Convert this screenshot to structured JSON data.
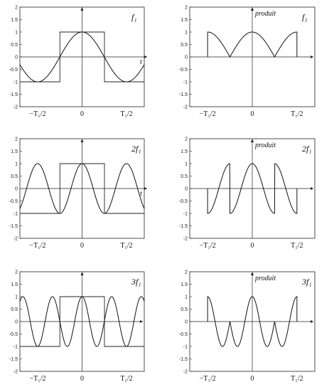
{
  "figure": {
    "tick_labels_y": [
      "2",
      "1.5",
      "1",
      "0.5",
      "0",
      "-0.5",
      "-1",
      "-1.5",
      "-2"
    ],
    "bottom_labels": {
      "left": "−T₁/2",
      "center": "0",
      "right": "T₁/2"
    },
    "t_label": "t",
    "product_label": "produit"
  },
  "chart_data": [
    {
      "id": "left-1",
      "type": "line",
      "freq_label": "f₁",
      "harmonic": 1,
      "show_t": true,
      "show_produit": false,
      "ylim": [
        -2,
        2
      ],
      "xlim": [
        -0.7,
        0.7
      ],
      "yticks": [
        2,
        1.5,
        1,
        0.5,
        0,
        -0.5,
        -1,
        -1.5,
        -2
      ],
      "series": [
        {
          "kind": "square",
          "period": 1,
          "amplitude": 1
        },
        {
          "kind": "cosine",
          "period": 1,
          "amplitude": 1
        }
      ]
    },
    {
      "id": "right-1",
      "type": "line",
      "freq_label": "f₁",
      "harmonic": 1,
      "show_t": false,
      "show_produit": true,
      "ylim": [
        -2,
        2
      ],
      "xlim": [
        -0.7,
        0.7
      ],
      "yticks": [
        2,
        1.5,
        1,
        0.5,
        0,
        -0.5,
        -1,
        -1.5,
        -2
      ],
      "series": [
        {
          "kind": "product",
          "window": [
            -0.5,
            0.5
          ]
        }
      ]
    },
    {
      "id": "left-2",
      "type": "line",
      "freq_label": "2f₁",
      "harmonic": 2,
      "show_t": true,
      "show_produit": false,
      "ylim": [
        -2,
        2
      ],
      "xlim": [
        -0.7,
        0.7
      ],
      "yticks": [
        2,
        1.5,
        1,
        0.5,
        0,
        -0.5,
        -1,
        -1.5,
        -2
      ],
      "series": [
        {
          "kind": "square",
          "period": 1,
          "amplitude": 1
        },
        {
          "kind": "cosine",
          "period": 0.5,
          "amplitude": 1
        }
      ]
    },
    {
      "id": "right-2",
      "type": "line",
      "freq_label": "2f₁",
      "harmonic": 2,
      "show_t": false,
      "show_produit": true,
      "ylim": [
        -2,
        2
      ],
      "xlim": [
        -0.7,
        0.7
      ],
      "yticks": [
        2,
        1.5,
        1,
        0.5,
        0,
        -0.5,
        -1,
        -1.5,
        -2
      ],
      "series": [
        {
          "kind": "product",
          "window": [
            -0.5,
            0.5
          ]
        }
      ]
    },
    {
      "id": "left-3",
      "type": "line",
      "freq_label": "3f₁",
      "harmonic": 3,
      "show_t": false,
      "show_produit": false,
      "ylim": [
        -2,
        2
      ],
      "xlim": [
        -0.7,
        0.7
      ],
      "yticks": [
        2,
        1.5,
        1,
        0.5,
        0,
        -0.5,
        -1,
        -1.5,
        -2
      ],
      "series": [
        {
          "kind": "square",
          "period": 1,
          "amplitude": 1
        },
        {
          "kind": "cosine",
          "period": 0.3333,
          "amplitude": 1
        }
      ]
    },
    {
      "id": "right-3",
      "type": "line",
      "freq_label": "3f₁",
      "harmonic": 3,
      "show_t": false,
      "show_produit": true,
      "ylim": [
        -2,
        2
      ],
      "xlim": [
        -0.7,
        0.7
      ],
      "yticks": [
        2,
        1.5,
        1,
        0.5,
        0,
        -0.5,
        -1,
        -1.5,
        -2
      ],
      "series": [
        {
          "kind": "product",
          "window": [
            -0.5,
            0.5
          ]
        }
      ]
    }
  ]
}
